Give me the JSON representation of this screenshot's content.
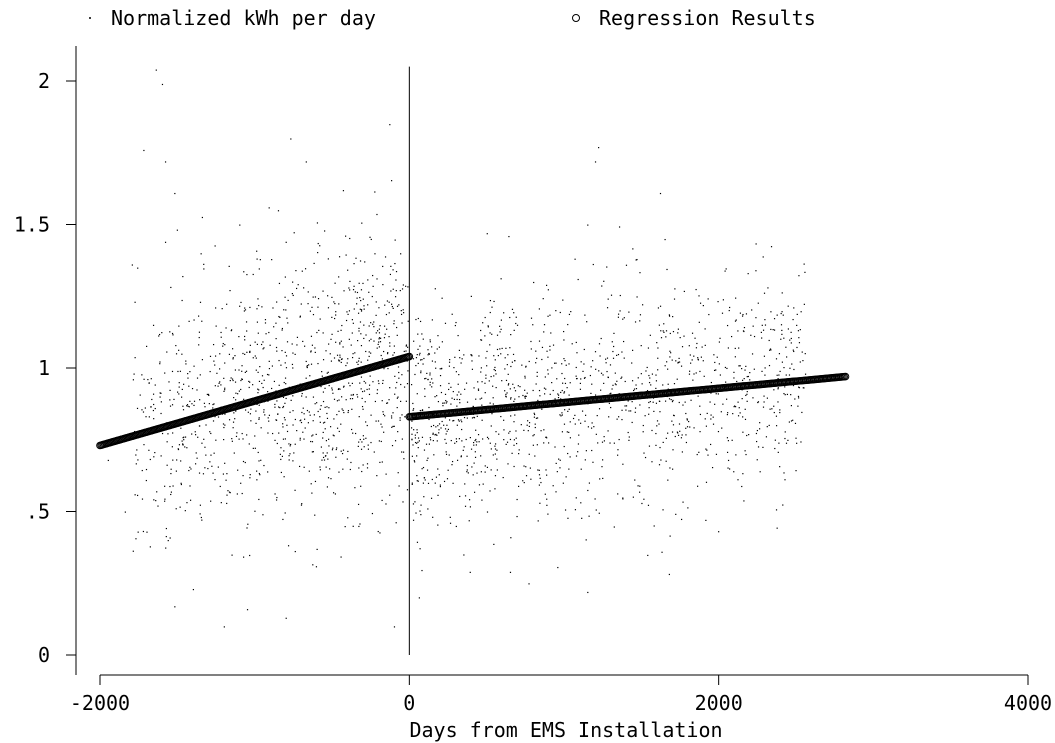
{
  "chart_data": {
    "type": "scatter",
    "xlabel": "Days from EMS Installation",
    "ylabel": "",
    "xlim": [
      -2000,
      4000
    ],
    "ylim": [
      0,
      2
    ],
    "x_ticks": [
      -2000,
      0,
      2000,
      4000
    ],
    "x_tick_labels": [
      "-2000",
      "0",
      "2000",
      "4000"
    ],
    "y_ticks": [
      0,
      0.5,
      1,
      1.5,
      2
    ],
    "y_tick_labels": [
      "0",
      ".5",
      "1",
      "1.5",
      "2"
    ],
    "legend_position": "top",
    "grid": false,
    "legend": [
      {
        "name": "Normalized kWh per day",
        "marker": "dot"
      },
      {
        "name": "Regression Results",
        "marker": "hollow-circle"
      }
    ],
    "annotations": [
      {
        "type": "vertical-line",
        "x": 0,
        "y_range": [
          0,
          2.05
        ]
      }
    ],
    "series": [
      {
        "name": "Normalized kWh per day",
        "marker": "dot",
        "description_points": [
          [
            -1640,
            2.04
          ],
          [
            -1600,
            1.99
          ],
          [
            -1720,
            1.76
          ],
          [
            -1580,
            1.72
          ],
          [
            -130,
            1.85
          ],
          [
            -770,
            1.8
          ],
          [
            -1520,
            1.61
          ],
          [
            -910,
            1.56
          ],
          [
            -850,
            1.55
          ],
          [
            -800,
            1.44
          ],
          [
            -1760,
            1.35
          ],
          [
            -1580,
            1.44
          ],
          [
            -1350,
            1.4
          ],
          [
            -1100,
            1.5
          ],
          [
            -670,
            1.72
          ],
          [
            -430,
            1.62
          ],
          [
            -250,
            1.45
          ],
          [
            -60,
            1.4
          ],
          [
            -1200,
            0.1
          ],
          [
            -100,
            0.1
          ],
          [
            -1520,
            0.17
          ],
          [
            -1050,
            0.16
          ],
          [
            -800,
            0.13
          ],
          [
            -1400,
            0.23
          ],
          [
            -1150,
            0.35
          ],
          [
            -600,
            0.37
          ],
          [
            -330,
            0.45
          ],
          [
            -1950,
            0.68
          ],
          [
            -1840,
            0.5
          ],
          [
            -1700,
            0.43
          ],
          [
            1220,
            1.77
          ],
          [
            1200,
            1.72
          ],
          [
            1620,
            1.61
          ],
          [
            1150,
            1.5
          ],
          [
            500,
            1.47
          ],
          [
            640,
            1.46
          ],
          [
            1400,
            1.36
          ],
          [
            800,
            1.3
          ],
          [
            2340,
            0.86
          ],
          [
            2190,
            0.77
          ],
          [
            1860,
            0.59
          ],
          [
            1500,
            0.53
          ],
          [
            390,
            0.29
          ],
          [
            770,
            0.25
          ],
          [
            650,
            0.29
          ],
          [
            1150,
            0.22
          ],
          [
            1630,
            0.36
          ],
          [
            2060,
            0.68
          ],
          [
            120,
            0.6
          ],
          [
            300,
            0.45
          ]
        ]
      },
      {
        "name": "Regression Results",
        "marker": "hollow-circle",
        "segments": [
          {
            "x": [
              -2000,
              0
            ],
            "y": [
              0.73,
              1.04
            ]
          },
          {
            "x": [
              0,
              2820
            ],
            "y": [
              0.83,
              0.97
            ]
          }
        ]
      }
    ]
  }
}
